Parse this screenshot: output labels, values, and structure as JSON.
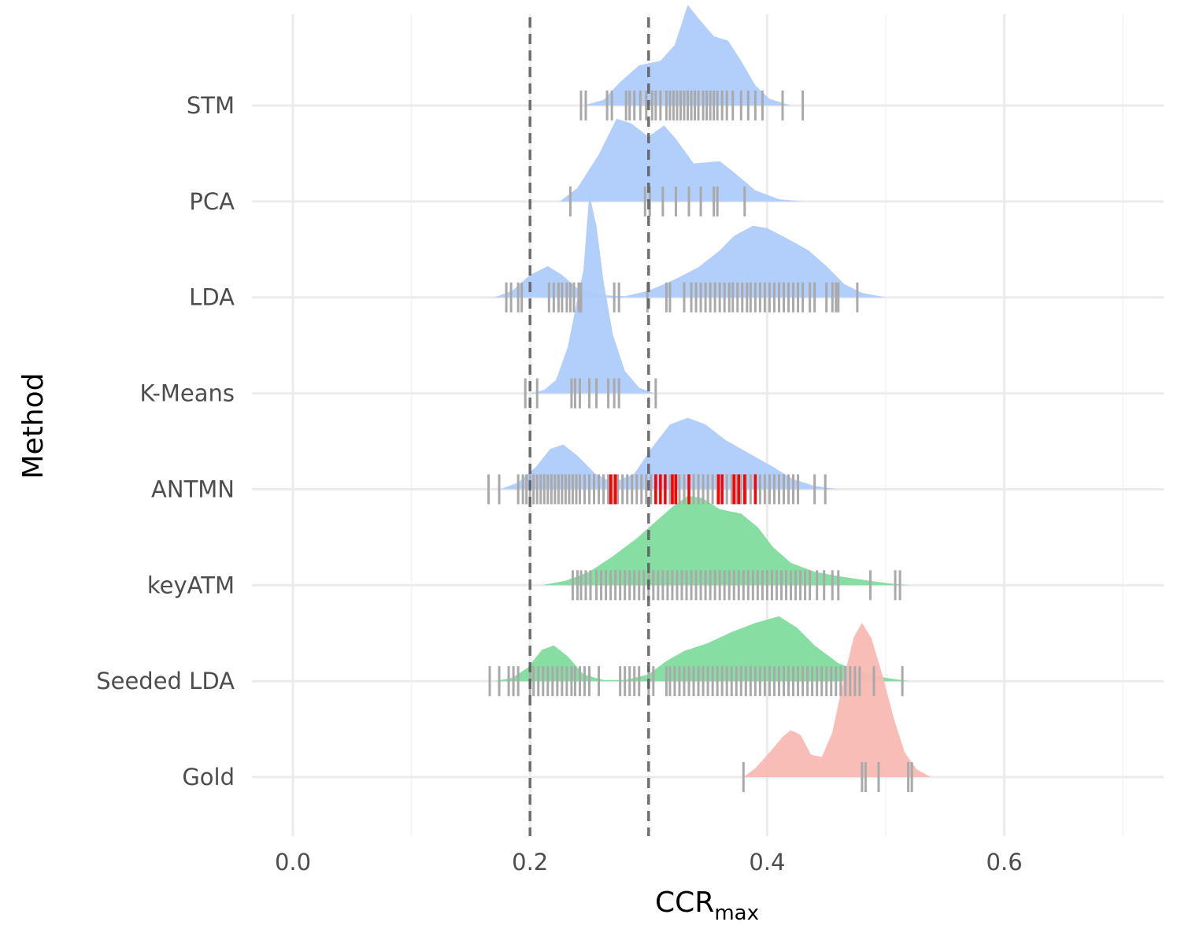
{
  "chart_data": {
    "type": "ridgeline",
    "xlabel": "CCR",
    "xlabel_subscript": "max",
    "ylabel": "Method",
    "xlim": [
      -0.035,
      0.735
    ],
    "x_ticks": [
      0.0,
      0.2,
      0.4,
      0.6
    ],
    "x_tick_labels": [
      "0.0",
      "0.2",
      "0.4",
      "0.6"
    ],
    "reference_lines": [
      0.2,
      0.3
    ],
    "grid": true,
    "legend": "none",
    "colors": {
      "baseline_model": "#aecbfa",
      "seeded_model": "#81dc9d",
      "gold": "#f9b9b4",
      "rug": "#a9a9a9",
      "rug_highlight": "#ff0000"
    },
    "categories": [
      "STM",
      "PCA",
      "LDA",
      "K-Means",
      "ANTMN",
      "keyATM",
      "Seeded LDA",
      "Gold"
    ],
    "series": [
      {
        "category": "STM",
        "group": "baseline_model",
        "density": [
          [
            0.245,
            0.0
          ],
          [
            0.262,
            0.05
          ],
          [
            0.275,
            0.2
          ],
          [
            0.292,
            0.36
          ],
          [
            0.31,
            0.4
          ],
          [
            0.322,
            0.54
          ],
          [
            0.333,
            0.9
          ],
          [
            0.342,
            0.78
          ],
          [
            0.355,
            0.62
          ],
          [
            0.367,
            0.58
          ],
          [
            0.378,
            0.4
          ],
          [
            0.39,
            0.18
          ],
          [
            0.402,
            0.06
          ],
          [
            0.42,
            0.0
          ]
        ],
        "rug": [
          0.243,
          0.247,
          0.265,
          0.269,
          0.281,
          0.284,
          0.288,
          0.293,
          0.298,
          0.303,
          0.306,
          0.31,
          0.315,
          0.318,
          0.321,
          0.324,
          0.327,
          0.33,
          0.333,
          0.336,
          0.339,
          0.342,
          0.346,
          0.349,
          0.352,
          0.355,
          0.358,
          0.362,
          0.366,
          0.371,
          0.378,
          0.384,
          0.39,
          0.396,
          0.413,
          0.43
        ],
        "rug_highlight": []
      },
      {
        "category": "PCA",
        "group": "baseline_model",
        "density": [
          [
            0.225,
            0.0
          ],
          [
            0.24,
            0.12
          ],
          [
            0.258,
            0.42
          ],
          [
            0.273,
            0.74
          ],
          [
            0.285,
            0.7
          ],
          [
            0.3,
            0.58
          ],
          [
            0.313,
            0.68
          ],
          [
            0.323,
            0.56
          ],
          [
            0.338,
            0.34
          ],
          [
            0.36,
            0.36
          ],
          [
            0.372,
            0.26
          ],
          [
            0.39,
            0.1
          ],
          [
            0.41,
            0.02
          ],
          [
            0.43,
            0.0
          ]
        ],
        "rug": [
          0.234,
          0.297,
          0.301,
          0.312,
          0.323,
          0.334,
          0.344,
          0.355,
          0.358,
          0.381
        ],
        "rug_highlight": []
      },
      {
        "category": "LDA",
        "group": "baseline_model",
        "density": [
          [
            0.17,
            0.0
          ],
          [
            0.185,
            0.06
          ],
          [
            0.2,
            0.2
          ],
          [
            0.215,
            0.28
          ],
          [
            0.227,
            0.2
          ],
          [
            0.24,
            0.08
          ],
          [
            0.26,
            0.02
          ],
          [
            0.28,
            0.01
          ],
          [
            0.3,
            0.06
          ],
          [
            0.322,
            0.16
          ],
          [
            0.342,
            0.27
          ],
          [
            0.36,
            0.42
          ],
          [
            0.372,
            0.55
          ],
          [
            0.388,
            0.64
          ],
          [
            0.4,
            0.62
          ],
          [
            0.418,
            0.52
          ],
          [
            0.435,
            0.42
          ],
          [
            0.45,
            0.28
          ],
          [
            0.465,
            0.12
          ],
          [
            0.48,
            0.04
          ],
          [
            0.5,
            0.0
          ]
        ],
        "rug": [
          0.18,
          0.184,
          0.19,
          0.193,
          0.216,
          0.22,
          0.224,
          0.227,
          0.231,
          0.234,
          0.237,
          0.241,
          0.243,
          0.271,
          0.275,
          0.299,
          0.315,
          0.318,
          0.33,
          0.336,
          0.34,
          0.344,
          0.348,
          0.352,
          0.356,
          0.36,
          0.364,
          0.368,
          0.371,
          0.375,
          0.379,
          0.383,
          0.386,
          0.39,
          0.394,
          0.398,
          0.402,
          0.406,
          0.41,
          0.414,
          0.418,
          0.422,
          0.426,
          0.43,
          0.436,
          0.44,
          0.45,
          0.455,
          0.458,
          0.46,
          0.476
        ],
        "rug_highlight": []
      },
      {
        "category": "K-Means",
        "group": "baseline_model",
        "density": [
          [
            0.2,
            0.0
          ],
          [
            0.212,
            0.03
          ],
          [
            0.222,
            0.12
          ],
          [
            0.232,
            0.42
          ],
          [
            0.24,
            0.85
          ],
          [
            0.245,
            1.1
          ],
          [
            0.25,
            1.78
          ],
          [
            0.256,
            1.5
          ],
          [
            0.262,
            1.0
          ],
          [
            0.27,
            0.52
          ],
          [
            0.28,
            0.2
          ],
          [
            0.292,
            0.05
          ],
          [
            0.305,
            0.0
          ]
        ],
        "rug": [
          0.196,
          0.206,
          0.235,
          0.238,
          0.242,
          0.25,
          0.256,
          0.266,
          0.271,
          0.275,
          0.306
        ],
        "rug_highlight": []
      },
      {
        "category": "ANTMN",
        "group": "baseline_model",
        "density": [
          [
            0.175,
            0.0
          ],
          [
            0.19,
            0.06
          ],
          [
            0.205,
            0.2
          ],
          [
            0.217,
            0.36
          ],
          [
            0.228,
            0.4
          ],
          [
            0.24,
            0.3
          ],
          [
            0.255,
            0.14
          ],
          [
            0.27,
            0.06
          ],
          [
            0.288,
            0.14
          ],
          [
            0.302,
            0.36
          ],
          [
            0.318,
            0.58
          ],
          [
            0.333,
            0.64
          ],
          [
            0.348,
            0.58
          ],
          [
            0.365,
            0.44
          ],
          [
            0.385,
            0.32
          ],
          [
            0.405,
            0.2
          ],
          [
            0.422,
            0.09
          ],
          [
            0.44,
            0.03
          ],
          [
            0.46,
            0.0
          ]
        ],
        "rug": [
          0.165,
          0.174,
          0.19,
          0.194,
          0.197,
          0.2,
          0.203,
          0.206,
          0.209,
          0.212,
          0.215,
          0.218,
          0.221,
          0.224,
          0.227,
          0.23,
          0.233,
          0.236,
          0.239,
          0.242,
          0.246,
          0.25,
          0.254,
          0.258,
          0.262,
          0.266,
          0.27,
          0.274,
          0.278,
          0.282,
          0.286,
          0.29,
          0.294,
          0.298,
          0.302,
          0.306,
          0.31,
          0.314,
          0.318,
          0.322,
          0.326,
          0.33,
          0.334,
          0.338,
          0.342,
          0.346,
          0.35,
          0.354,
          0.358,
          0.362,
          0.366,
          0.37,
          0.374,
          0.378,
          0.382,
          0.386,
          0.39,
          0.394,
          0.398,
          0.402,
          0.406,
          0.41,
          0.414,
          0.418,
          0.422,
          0.426,
          0.44,
          0.449
        ],
        "rug_highlight": [
          0.268,
          0.272,
          0.306,
          0.31,
          0.314,
          0.32,
          0.323,
          0.334,
          0.359,
          0.362,
          0.372,
          0.376,
          0.381,
          0.39
        ]
      },
      {
        "category": "keyATM",
        "group": "seeded_model",
        "density": [
          [
            0.21,
            0.0
          ],
          [
            0.23,
            0.04
          ],
          [
            0.25,
            0.12
          ],
          [
            0.27,
            0.26
          ],
          [
            0.29,
            0.42
          ],
          [
            0.305,
            0.56
          ],
          [
            0.32,
            0.7
          ],
          [
            0.333,
            0.8
          ],
          [
            0.345,
            0.78
          ],
          [
            0.36,
            0.68
          ],
          [
            0.378,
            0.64
          ],
          [
            0.392,
            0.52
          ],
          [
            0.405,
            0.34
          ],
          [
            0.42,
            0.2
          ],
          [
            0.44,
            0.12
          ],
          [
            0.46,
            0.08
          ],
          [
            0.48,
            0.05
          ],
          [
            0.5,
            0.02
          ],
          [
            0.52,
            0.0
          ]
        ],
        "rug": [
          0.236,
          0.24,
          0.243,
          0.247,
          0.251,
          0.256,
          0.26,
          0.264,
          0.268,
          0.272,
          0.276,
          0.28,
          0.284,
          0.288,
          0.292,
          0.296,
          0.3,
          0.304,
          0.308,
          0.312,
          0.316,
          0.32,
          0.324,
          0.328,
          0.332,
          0.336,
          0.34,
          0.344,
          0.348,
          0.352,
          0.356,
          0.36,
          0.364,
          0.368,
          0.372,
          0.376,
          0.38,
          0.384,
          0.388,
          0.392,
          0.396,
          0.4,
          0.404,
          0.408,
          0.412,
          0.416,
          0.42,
          0.424,
          0.428,
          0.432,
          0.436,
          0.442,
          0.448,
          0.455,
          0.46,
          0.487,
          0.508,
          0.512
        ],
        "rug_highlight": []
      },
      {
        "category": "Seeded LDA",
        "group": "seeded_model",
        "density": [
          [
            0.17,
            0.0
          ],
          [
            0.185,
            0.03
          ],
          [
            0.198,
            0.12
          ],
          [
            0.21,
            0.28
          ],
          [
            0.22,
            0.32
          ],
          [
            0.232,
            0.22
          ],
          [
            0.245,
            0.06
          ],
          [
            0.262,
            0.01
          ],
          [
            0.28,
            0.01
          ],
          [
            0.3,
            0.06
          ],
          [
            0.315,
            0.18
          ],
          [
            0.33,
            0.27
          ],
          [
            0.35,
            0.34
          ],
          [
            0.37,
            0.44
          ],
          [
            0.39,
            0.52
          ],
          [
            0.41,
            0.58
          ],
          [
            0.425,
            0.48
          ],
          [
            0.44,
            0.32
          ],
          [
            0.46,
            0.16
          ],
          [
            0.48,
            0.08
          ],
          [
            0.5,
            0.03
          ],
          [
            0.52,
            0.0
          ]
        ],
        "rug": [
          0.166,
          0.174,
          0.182,
          0.186,
          0.19,
          0.2,
          0.203,
          0.207,
          0.211,
          0.215,
          0.219,
          0.223,
          0.227,
          0.231,
          0.235,
          0.238,
          0.242,
          0.246,
          0.25,
          0.258,
          0.276,
          0.28,
          0.284,
          0.288,
          0.292,
          0.3,
          0.304,
          0.315,
          0.318,
          0.322,
          0.326,
          0.33,
          0.334,
          0.338,
          0.342,
          0.346,
          0.35,
          0.354,
          0.358,
          0.362,
          0.366,
          0.37,
          0.374,
          0.378,
          0.382,
          0.386,
          0.39,
          0.394,
          0.398,
          0.402,
          0.406,
          0.41,
          0.414,
          0.418,
          0.422,
          0.426,
          0.43,
          0.434,
          0.438,
          0.442,
          0.446,
          0.45,
          0.454,
          0.458,
          0.462,
          0.466,
          0.47,
          0.474,
          0.478,
          0.49,
          0.514
        ],
        "rug_highlight": []
      },
      {
        "category": "Gold",
        "group": "gold",
        "density": [
          [
            0.38,
            0.0
          ],
          [
            0.39,
            0.08
          ],
          [
            0.402,
            0.22
          ],
          [
            0.413,
            0.36
          ],
          [
            0.42,
            0.42
          ],
          [
            0.428,
            0.38
          ],
          [
            0.437,
            0.2
          ],
          [
            0.446,
            0.18
          ],
          [
            0.455,
            0.4
          ],
          [
            0.465,
            0.9
          ],
          [
            0.473,
            1.25
          ],
          [
            0.48,
            1.38
          ],
          [
            0.488,
            1.24
          ],
          [
            0.497,
            0.92
          ],
          [
            0.507,
            0.52
          ],
          [
            0.516,
            0.22
          ],
          [
            0.526,
            0.07
          ],
          [
            0.538,
            0.0
          ]
        ],
        "rug": [
          0.38,
          0.48,
          0.483,
          0.494,
          0.519,
          0.522
        ],
        "rug_highlight": []
      }
    ]
  }
}
